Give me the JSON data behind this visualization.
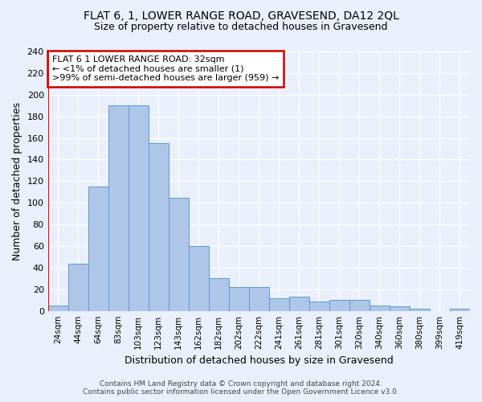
{
  "title1": "FLAT 6, 1, LOWER RANGE ROAD, GRAVESEND, DA12 2QL",
  "title2": "Size of property relative to detached houses in Gravesend",
  "xlabel": "Distribution of detached houses by size in Gravesend",
  "ylabel": "Number of detached properties",
  "footer1": "Contains HM Land Registry data © Crown copyright and database right 2024.",
  "footer2": "Contains public sector information licensed under the Open Government Licence v3.0.",
  "bar_labels": [
    "24sqm",
    "44sqm",
    "64sqm",
    "83sqm",
    "103sqm",
    "123sqm",
    "143sqm",
    "162sqm",
    "182sqm",
    "202sqm",
    "222sqm",
    "241sqm",
    "261sqm",
    "281sqm",
    "301sqm",
    "320sqm",
    "340sqm",
    "360sqm",
    "380sqm",
    "399sqm",
    "419sqm"
  ],
  "bar_values": [
    5,
    44,
    115,
    190,
    190,
    155,
    105,
    60,
    30,
    22,
    22,
    12,
    13,
    9,
    10,
    10,
    5,
    4,
    2,
    0,
    2
  ],
  "bar_color": "#aec6e8",
  "bar_edge_color": "#5b9bd5",
  "bg_color": "#eaf0fb",
  "grid_color": "#ffffff",
  "annotation_title": "FLAT 6 1 LOWER RANGE ROAD: 32sqm",
  "annotation_line1": "← <1% of detached houses are smaller (1)",
  "annotation_line2": ">99% of semi-detached houses are larger (959) →",
  "annotation_box_color": "#ffffff",
  "annotation_border_color": "#cc0000",
  "ylim": [
    0,
    240
  ],
  "yticks": [
    0,
    20,
    40,
    60,
    80,
    100,
    120,
    140,
    160,
    180,
    200,
    220,
    240
  ]
}
